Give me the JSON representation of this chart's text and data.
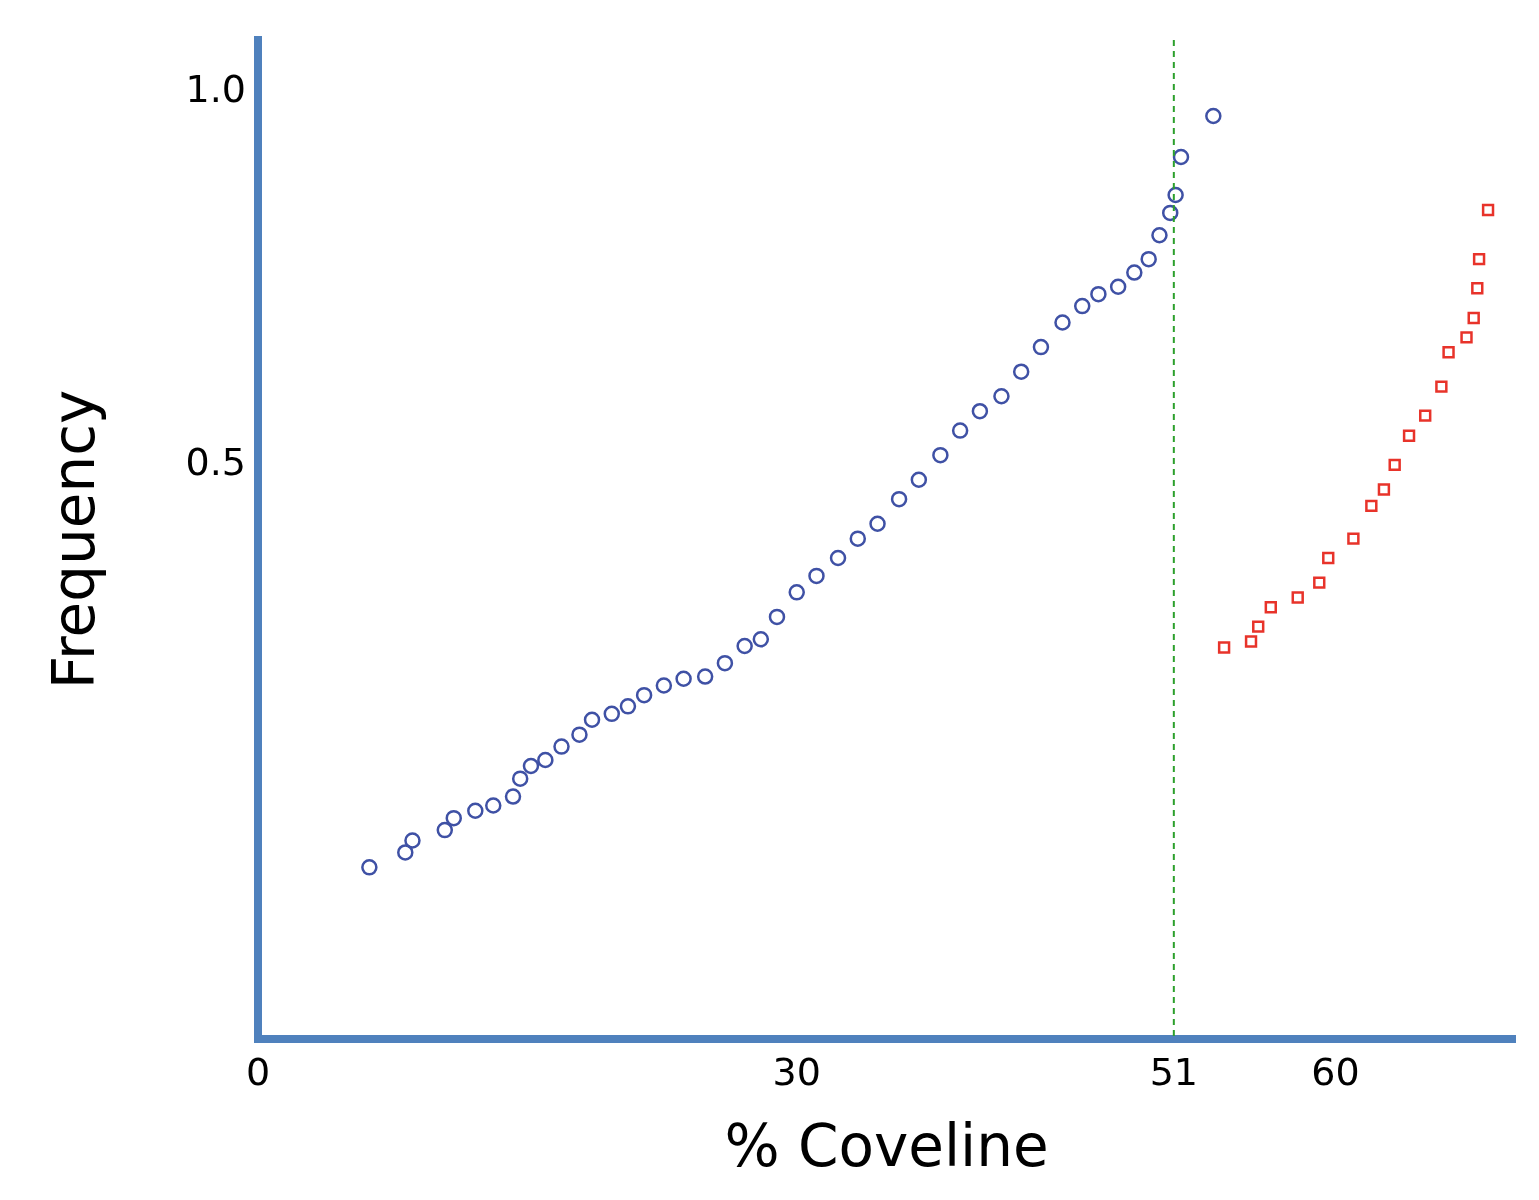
{
  "chart_data": {
    "type": "scatter",
    "xlabel": "% Coveline",
    "ylabel": "Frequency",
    "xlim": [
      0,
      70
    ],
    "ylim": [
      -0.27,
      1.07
    ],
    "xticks": [
      0,
      30,
      51,
      60
    ],
    "yticks": [
      {
        "value": 0.5,
        "label": "0.5"
      },
      {
        "value": 1,
        "label": "1.0"
      }
    ],
    "grid": false,
    "legend": false,
    "ref_lines": [
      {
        "axis": "x",
        "value": 51,
        "color": "#2ca02c",
        "line_style": "dashed"
      }
    ],
    "series": [
      {
        "color": "#3f51a5",
        "marker": "circle",
        "x": [
          6.2,
          8.2,
          8.6,
          10.4,
          10.9,
          12.1,
          13.1,
          14.2,
          14.6,
          15.2,
          16.0,
          16.9,
          17.9,
          18.6,
          19.7,
          20.6,
          21.5,
          22.6,
          23.7,
          24.9,
          26.0,
          27.1,
          28.0,
          28.9,
          30.0,
          31.1,
          32.3,
          33.4,
          34.5,
          35.7,
          36.8,
          38.0,
          39.1,
          40.2,
          41.4,
          42.5,
          43.6,
          44.8,
          45.9,
          46.8,
          47.9,
          48.8,
          49.6,
          50.2,
          50.8,
          51.1,
          51.4,
          53.2
        ],
        "values": [
          -0.04,
          -0.02,
          -0.004,
          0.01,
          0.026,
          0.036,
          0.043,
          0.055,
          0.079,
          0.096,
          0.104,
          0.122,
          0.138,
          0.158,
          0.166,
          0.176,
          0.191,
          0.204,
          0.213,
          0.216,
          0.234,
          0.257,
          0.266,
          0.296,
          0.329,
          0.351,
          0.375,
          0.401,
          0.421,
          0.454,
          0.48,
          0.513,
          0.546,
          0.572,
          0.592,
          0.625,
          0.658,
          0.691,
          0.713,
          0.729,
          0.739,
          0.758,
          0.776,
          0.808,
          0.838,
          0.862,
          0.913,
          0.968
        ]
      },
      {
        "color": "#e8332a",
        "marker": "square",
        "x": [
          53.8,
          55.3,
          55.7,
          56.4,
          57.9,
          59.1,
          59.6,
          61.0,
          62.0,
          62.7,
          63.3,
          64.1,
          65.0,
          65.9,
          66.3,
          67.3,
          67.7,
          67.9,
          68.0,
          68.5
        ],
        "values": [
          0.255,
          0.263,
          0.283,
          0.309,
          0.322,
          0.342,
          0.375,
          0.401,
          0.445,
          0.467,
          0.5,
          0.539,
          0.566,
          0.605,
          0.651,
          0.671,
          0.697,
          0.737,
          0.776,
          0.842
        ]
      }
    ]
  }
}
